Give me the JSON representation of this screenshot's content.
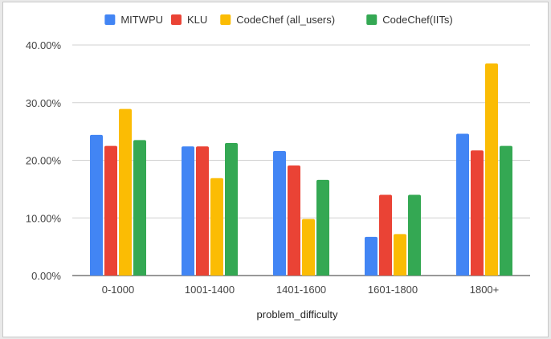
{
  "chart_data": {
    "type": "bar",
    "title": "",
    "xlabel": "problem_difficulty",
    "ylabel": "",
    "categories": [
      "0-1000",
      "1001-1400",
      "1401-1600",
      "1601-1800",
      "1800+"
    ],
    "series": [
      {
        "name": "MITWPU",
        "color": "#4285f4",
        "values": [
          24.4,
          22.4,
          21.6,
          6.7,
          24.6
        ]
      },
      {
        "name": "KLU",
        "color": "#ea4335",
        "values": [
          22.5,
          22.4,
          19.1,
          14.0,
          21.7
        ]
      },
      {
        "name": "CodeChef (all_users)",
        "color": "#fbbc04",
        "values": [
          28.9,
          16.9,
          9.8,
          7.2,
          36.8
        ]
      },
      {
        "name": "CodeChef(IITs)",
        "color": "#34a853",
        "values": [
          23.5,
          23.0,
          16.6,
          14.0,
          22.5
        ]
      }
    ],
    "ylim": [
      0,
      40
    ],
    "yticks": [
      "0.00%",
      "10.00%",
      "20.00%",
      "30.00%",
      "40.00%"
    ],
    "grid": true,
    "legend_position": "top"
  }
}
